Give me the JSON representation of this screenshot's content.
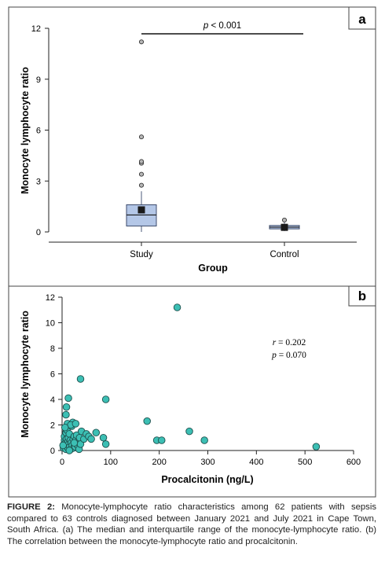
{
  "chart_data": [
    {
      "panel": "a",
      "type": "box",
      "xlabel": "Group",
      "ylabel": "Monocyte lymphocyte ratio",
      "ylim": [
        0,
        12
      ],
      "yticks": [
        0,
        3,
        6,
        9,
        12
      ],
      "significance": {
        "p_prefix": "p",
        "p_rest": " < 0.001"
      },
      "groups": [
        {
          "name": "Study",
          "q1": 0.35,
          "median": 1.0,
          "q3": 1.6,
          "whisker_low": 0.0,
          "whisker_high": 2.4,
          "mean": 1.3,
          "outliers": [
            2.75,
            3.4,
            4.05,
            4.15,
            5.6,
            11.2
          ]
        },
        {
          "name": "Control",
          "q1": 0.18,
          "median": 0.28,
          "q3": 0.38,
          "whisker_low": 0.05,
          "whisker_high": 0.55,
          "mean": 0.27,
          "outliers": [
            0.7
          ]
        }
      ],
      "box_color": "#b4c7e7"
    },
    {
      "panel": "b",
      "type": "scatter",
      "xlabel": "Procalcitonin (ng/L)",
      "ylabel": "Monocyte lymphocyte ratio",
      "xlim": [
        0,
        600
      ],
      "ylim": [
        0,
        12
      ],
      "xticks": [
        0,
        100,
        200,
        300,
        400,
        500,
        600
      ],
      "yticks": [
        0,
        2,
        4,
        6,
        8,
        10,
        12
      ],
      "stats": {
        "r_label": "r",
        "r_value": " = 0.202",
        "p_label": "p",
        "p_value": " = 0.070"
      },
      "point_color": "#3cbfb4",
      "points": [
        [
          3,
          0.2
        ],
        [
          4,
          0.5
        ],
        [
          5,
          0.8
        ],
        [
          5,
          1.1
        ],
        [
          6,
          0.3
        ],
        [
          7,
          0.6
        ],
        [
          8,
          1.4
        ],
        [
          8,
          0.1
        ],
        [
          9,
          0.9
        ],
        [
          10,
          0.4
        ],
        [
          10,
          1.6
        ],
        [
          11,
          2.1
        ],
        [
          12,
          0.7
        ],
        [
          12,
          0.2
        ],
        [
          13,
          1.0
        ],
        [
          14,
          0.5
        ],
        [
          15,
          1.3
        ],
        [
          16,
          0.3
        ],
        [
          17,
          0.8
        ],
        [
          18,
          0.1
        ],
        [
          19,
          0.6
        ],
        [
          20,
          1.9
        ],
        [
          21,
          0.4
        ],
        [
          22,
          2.2
        ],
        [
          23,
          0.9
        ],
        [
          24,
          0.2
        ],
        [
          25,
          1.1
        ],
        [
          26,
          0.5
        ],
        [
          27,
          0.3
        ],
        [
          28,
          0.8
        ],
        [
          30,
          1.2
        ],
        [
          32,
          0.4
        ],
        [
          34,
          0.7
        ],
        [
          35,
          0.1
        ],
        [
          36,
          1.0
        ],
        [
          38,
          0.5
        ],
        [
          40,
          1.5
        ],
        [
          45,
          0.9
        ],
        [
          50,
          1.3
        ],
        [
          55,
          1.1
        ],
        [
          60,
          0.9
        ],
        [
          70,
          1.4
        ],
        [
          85,
          1.0
        ],
        [
          90,
          0.5
        ],
        [
          8,
          2.8
        ],
        [
          9,
          3.4
        ],
        [
          13,
          4.1
        ],
        [
          18,
          2.0
        ],
        [
          28,
          2.1
        ],
        [
          38,
          5.6
        ],
        [
          90,
          4.0
        ],
        [
          175,
          2.3
        ],
        [
          195,
          0.8
        ],
        [
          205,
          0.8
        ],
        [
          237,
          11.2
        ],
        [
          262,
          1.5
        ],
        [
          293,
          0.8
        ],
        [
          523,
          0.3
        ],
        [
          2,
          0.4
        ],
        [
          6,
          1.8
        ],
        [
          15,
          0.0
        ],
        [
          25,
          0.6
        ]
      ]
    }
  ],
  "panel_labels": {
    "a": "a",
    "b": "b"
  },
  "caption": {
    "label": "FIGURE 2:",
    "text": " Monocyte-lymphocyte ratio characteristics among 62 patients with sepsis compared to 63 controls diagnosed between January 2021 and July 2021 in Cape Town, South Africa. (a) The median and interquartile range of the monocyte-lymphocyte ratio. (b) The correlation between the monocyte-lymphocyte ratio and procalcitonin."
  }
}
